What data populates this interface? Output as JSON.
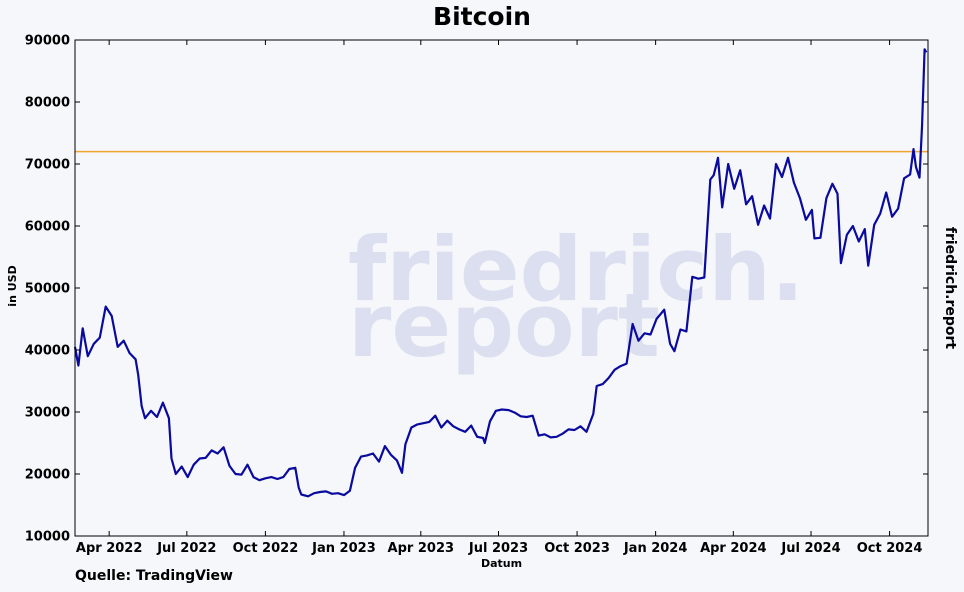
{
  "chart_data": {
    "type": "line",
    "title": "Bitcoin",
    "xlabel": "Datum",
    "ylabel": "in USD",
    "ylim": [
      10000,
      90000
    ],
    "yticks": [
      10000,
      20000,
      30000,
      40000,
      50000,
      60000,
      70000,
      80000,
      90000
    ],
    "x_ticks": [
      "Apr 2022",
      "Jul 2022",
      "Oct 2022",
      "Jan 2023",
      "Apr 2023",
      "Jul 2023",
      "Oct 2023",
      "Jan 2024",
      "Apr 2024",
      "Jul 2024",
      "Oct 2024"
    ],
    "xlim": [
      "2022-02-20",
      "2024-11-15"
    ],
    "grid": false,
    "reference_line": {
      "value": 72000,
      "color": "#f0a530"
    },
    "series": [
      {
        "color": "#0a0a9e",
        "x": [
          "2022-02-20",
          "2022-02-24",
          "2022-03-01",
          "2022-03-07",
          "2022-03-14",
          "2022-03-21",
          "2022-03-28",
          "2022-04-04",
          "2022-04-11",
          "2022-04-18",
          "2022-04-25",
          "2022-05-02",
          "2022-05-05",
          "2022-05-09",
          "2022-05-13",
          "2022-05-20",
          "2022-05-27",
          "2022-06-03",
          "2022-06-10",
          "2022-06-13",
          "2022-06-18",
          "2022-06-25",
          "2022-07-02",
          "2022-07-09",
          "2022-07-16",
          "2022-07-23",
          "2022-07-30",
          "2022-08-06",
          "2022-08-13",
          "2022-08-20",
          "2022-08-27",
          "2022-09-03",
          "2022-09-10",
          "2022-09-17",
          "2022-09-24",
          "2022-10-01",
          "2022-10-08",
          "2022-10-15",
          "2022-10-22",
          "2022-10-29",
          "2022-11-05",
          "2022-11-09",
          "2022-11-12",
          "2022-11-20",
          "2022-11-27",
          "2022-12-04",
          "2022-12-11",
          "2022-12-18",
          "2022-12-25",
          "2023-01-01",
          "2023-01-08",
          "2023-01-14",
          "2023-01-21",
          "2023-01-28",
          "2023-02-04",
          "2023-02-11",
          "2023-02-18",
          "2023-02-25",
          "2023-03-04",
          "2023-03-10",
          "2023-03-14",
          "2023-03-21",
          "2023-03-28",
          "2023-04-04",
          "2023-04-11",
          "2023-04-18",
          "2023-04-25",
          "2023-05-02",
          "2023-05-09",
          "2023-05-16",
          "2023-05-23",
          "2023-05-30",
          "2023-06-06",
          "2023-06-13",
          "2023-06-15",
          "2023-06-21",
          "2023-06-28",
          "2023-07-05",
          "2023-07-13",
          "2023-07-20",
          "2023-07-27",
          "2023-08-03",
          "2023-08-10",
          "2023-08-17",
          "2023-08-24",
          "2023-08-31",
          "2023-09-07",
          "2023-09-14",
          "2023-09-21",
          "2023-09-28",
          "2023-10-05",
          "2023-10-12",
          "2023-10-20",
          "2023-10-24",
          "2023-10-31",
          "2023-11-07",
          "2023-11-14",
          "2023-11-21",
          "2023-11-28",
          "2023-12-05",
          "2023-12-12",
          "2023-12-19",
          "2023-12-26",
          "2024-01-02",
          "2024-01-11",
          "2024-01-18",
          "2024-01-23",
          "2024-01-30",
          "2024-02-06",
          "2024-02-13",
          "2024-02-20",
          "2024-02-27",
          "2024-03-05",
          "2024-03-09",
          "2024-03-14",
          "2024-03-19",
          "2024-03-26",
          "2024-04-02",
          "2024-04-09",
          "2024-04-16",
          "2024-04-23",
          "2024-04-30",
          "2024-05-07",
          "2024-05-14",
          "2024-05-21",
          "2024-05-28",
          "2024-06-04",
          "2024-06-11",
          "2024-06-18",
          "2024-06-25",
          "2024-07-02",
          "2024-07-05",
          "2024-07-12",
          "2024-07-19",
          "2024-07-26",
          "2024-08-01",
          "2024-08-05",
          "2024-08-12",
          "2024-08-19",
          "2024-08-26",
          "2024-09-02",
          "2024-09-06",
          "2024-09-13",
          "2024-09-20",
          "2024-09-27",
          "2024-10-04",
          "2024-10-11",
          "2024-10-18",
          "2024-10-25",
          "2024-10-29",
          "2024-11-01",
          "2024-11-05",
          "2024-11-08",
          "2024-11-11",
          "2024-11-13"
        ],
        "y": [
          40500,
          37500,
          43500,
          39000,
          41000,
          42000,
          47000,
          45500,
          40500,
          41500,
          39500,
          38500,
          36000,
          31000,
          29000,
          30200,
          29200,
          31500,
          29000,
          22500,
          20000,
          21200,
          19500,
          21500,
          22500,
          22600,
          23800,
          23300,
          24300,
          21300,
          20000,
          19900,
          21500,
          19500,
          19000,
          19300,
          19500,
          19200,
          19500,
          20800,
          21000,
          17800,
          16700,
          16400,
          16900,
          17100,
          17200,
          16800,
          16900,
          16600,
          17300,
          21000,
          22800,
          23000,
          23300,
          22000,
          24500,
          23100,
          22200,
          20200,
          24800,
          27500,
          28000,
          28200,
          28400,
          29400,
          27500,
          28600,
          27700,
          27200,
          26800,
          27800,
          26000,
          25800,
          25000,
          28500,
          30200,
          30400,
          30300,
          29900,
          29300,
          29200,
          29400,
          26200,
          26400,
          25900,
          26000,
          26500,
          27200,
          27100,
          27700,
          26800,
          29700,
          34200,
          34500,
          35500,
          36800,
          37400,
          37800,
          44200,
          41500,
          42700,
          42500,
          45000,
          46500,
          41000,
          39800,
          43300,
          43000,
          51800,
          51500,
          51700,
          67500,
          68200,
          71000,
          63000,
          70000,
          66000,
          69000,
          63500,
          64800,
          60200,
          63300,
          61200,
          70000,
          67900,
          71000,
          67000,
          64500,
          61000,
          62600,
          58000,
          58100,
          64500,
          66800,
          65200,
          54000,
          58600,
          60000,
          57500,
          59500,
          53600,
          60200,
          62000,
          65400,
          61500,
          62800,
          67700,
          68300,
          72400,
          69500,
          67800,
          76000,
          88500,
          88000
        ]
      }
    ]
  },
  "watermark": {
    "line1": "friedrich.",
    "line2": "report"
  },
  "side_brand": "friedrich.report",
  "source_note": "Quelle: TradingView"
}
